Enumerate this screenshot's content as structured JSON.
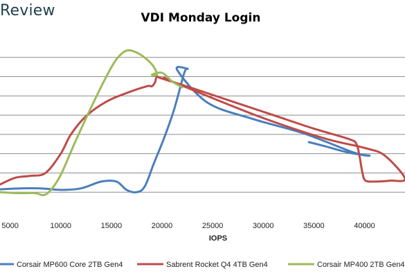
{
  "brand": "Review",
  "chart_data": {
    "type": "line",
    "title": "VDI Monday Login",
    "xlabel": "IOPS",
    "ylabel": "",
    "xlim": [
      4000,
      44000
    ],
    "ylim": [
      0,
      9
    ],
    "x_ticks": [
      5000,
      10000,
      15000,
      20000,
      25000,
      30000,
      35000,
      40000
    ],
    "y_gridlines": [
      1,
      2,
      3,
      4,
      5,
      6,
      7,
      8
    ],
    "grid": true,
    "legend_position": "bottom",
    "series": [
      {
        "name": "Corsair MP600 Core 2TB Gen4",
        "color": "#4a7ebb",
        "points": [
          [
            4000,
            1.15
          ],
          [
            6000,
            1.2
          ],
          [
            8000,
            1.2
          ],
          [
            10000,
            1.12
          ],
          [
            12000,
            1.2
          ],
          [
            14000,
            1.55
          ],
          [
            15500,
            1.55
          ],
          [
            16500,
            1.12
          ],
          [
            17500,
            1.0
          ],
          [
            18300,
            1.3
          ],
          [
            19200,
            2.5
          ],
          [
            20200,
            3.8
          ],
          [
            21200,
            5.3
          ],
          [
            22200,
            7.2
          ],
          [
            22500,
            7.4
          ],
          [
            21500,
            7.35
          ],
          [
            24500,
            5.65
          ],
          [
            29000,
            4.8
          ],
          [
            34000,
            4.05
          ],
          [
            39000,
            3.05
          ],
          [
            40500,
            2.9
          ],
          [
            38500,
            3.05
          ],
          [
            36000,
            3.4
          ],
          [
            34500,
            3.6
          ]
        ]
      },
      {
        "name": "Sabrent Rocket Q4 4TB Gen4",
        "color": "#be4b48",
        "points": [
          [
            4000,
            1.4
          ],
          [
            5500,
            1.75
          ],
          [
            7000,
            1.85
          ],
          [
            8500,
            2.0
          ],
          [
            10000,
            3.0
          ],
          [
            11000,
            4.0
          ],
          [
            12500,
            4.95
          ],
          [
            14500,
            5.7
          ],
          [
            16500,
            6.15
          ],
          [
            18500,
            6.5
          ],
          [
            19000,
            6.5
          ],
          [
            19300,
            6.7
          ],
          [
            19500,
            7.0
          ],
          [
            20000,
            6.9
          ],
          [
            23000,
            6.4
          ],
          [
            27000,
            5.7
          ],
          [
            31000,
            5.0
          ],
          [
            35000,
            4.3
          ],
          [
            38500,
            3.75
          ],
          [
            39200,
            3.5
          ],
          [
            39500,
            2.9
          ],
          [
            39800,
            2.0
          ],
          [
            40100,
            1.6
          ],
          [
            41000,
            1.55
          ],
          [
            42500,
            1.6
          ],
          [
            44000,
            1.7
          ],
          [
            42000,
            2.9
          ],
          [
            40000,
            3.3
          ],
          [
            36000,
            3.8
          ],
          [
            30000,
            4.85
          ],
          [
            24000,
            6.1
          ],
          [
            20800,
            6.8
          ],
          [
            20200,
            6.95
          ]
        ]
      },
      {
        "name": "Corsair MP400 2TB Gen4",
        "color": "#9bbb59",
        "points": [
          [
            4000,
            1.0
          ],
          [
            6000,
            0.95
          ],
          [
            7500,
            0.95
          ],
          [
            8300,
            0.85
          ],
          [
            9000,
            1.1
          ],
          [
            10000,
            1.9
          ],
          [
            11500,
            3.7
          ],
          [
            13000,
            5.4
          ],
          [
            14500,
            7.0
          ],
          [
            15500,
            7.9
          ],
          [
            16500,
            8.35
          ],
          [
            17500,
            8.25
          ],
          [
            18500,
            7.9
          ],
          [
            19200,
            7.5
          ],
          [
            19500,
            7.1
          ],
          [
            19000,
            7.1
          ],
          [
            20000,
            7.2
          ],
          [
            21000,
            6.75
          ],
          [
            22000,
            6.45
          ]
        ]
      }
    ]
  }
}
